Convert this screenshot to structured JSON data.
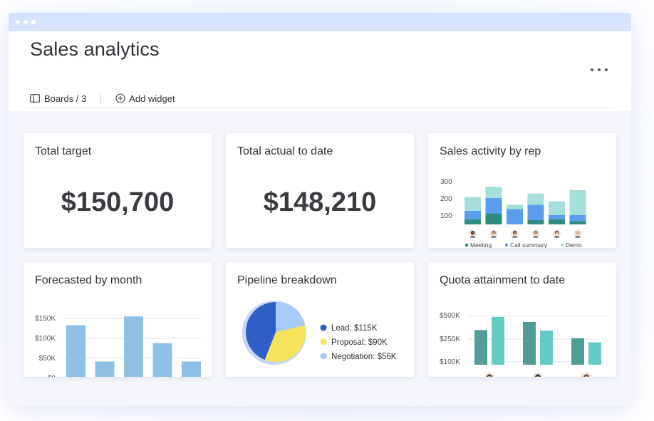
{
  "window": {
    "dots": 3
  },
  "header": {
    "title": "Sales analytics",
    "boards_label": "Boards / 3",
    "add_widget_label": "Add widget"
  },
  "colors": {
    "titlebar": "#d6e4fb",
    "meeting": "#2e8b80",
    "call_summary": "#5b9ef0",
    "demo": "#a6ded9",
    "forecast_bar": "#8fc0e6",
    "lead": "#2f5fc4",
    "proposal": "#f6e35b",
    "negotiation": "#aac9fb",
    "quota_dark": "#519c97",
    "quota_light": "#63cac4"
  },
  "cards": {
    "total_target": {
      "title": "Total target",
      "value": "$150,700"
    },
    "total_actual": {
      "title": "Total actual to date",
      "value": "$148,210"
    },
    "sales_activity": {
      "title": "Sales activity by rep"
    },
    "forecast": {
      "title": "Forecasted by month"
    },
    "pipeline": {
      "title": "Pipeline breakdown"
    },
    "quota": {
      "title": "Quota attainment to date"
    }
  },
  "chart_data": [
    {
      "id": "sales_activity",
      "type": "bar",
      "stacked": true,
      "title": "Sales activity by rep",
      "categories": [
        "rep-1",
        "rep-2",
        "rep-3",
        "rep-4",
        "rep-5",
        "rep-6"
      ],
      "series": [
        {
          "name": "Meeting",
          "values": [
            30,
            65,
            0,
            25,
            30,
            20
          ]
        },
        {
          "name": "Call summary",
          "values": [
            50,
            90,
            90,
            90,
            25,
            35
          ]
        },
        {
          "name": "Demo",
          "values": [
            80,
            65,
            25,
            65,
            80,
            145
          ]
        }
      ],
      "ytick_labels": [
        "300",
        "200",
        "100"
      ],
      "ylim": [
        50,
        300
      ],
      "grid": false,
      "legend": "bottom"
    },
    {
      "id": "forecast",
      "type": "bar",
      "title": "Forecasted by month",
      "categories": [
        "m1",
        "m2",
        "m3",
        "m4",
        "m5"
      ],
      "values": [
        133000,
        42000,
        155000,
        88000,
        42000
      ],
      "ytick_labels": [
        "$150K",
        "$100K",
        "$50K",
        "$0"
      ],
      "ylim": [
        0,
        165000
      ],
      "grid": true
    },
    {
      "id": "pipeline",
      "type": "pie",
      "title": "Pipeline breakdown",
      "slices": [
        {
          "label": "Lead: $115K",
          "value": 115
        },
        {
          "label": "Proposal: $90K",
          "value": 90
        },
        {
          "label": "Negotiation: $56K",
          "value": 56
        }
      ],
      "legend": "right"
    },
    {
      "id": "quota",
      "type": "bar",
      "title": "Quota attainment to date",
      "categories": [
        "rep-1",
        "rep-2",
        "rep-3"
      ],
      "series": [
        {
          "name": "",
          "values": [
            340000,
            420000,
            260000
          ]
        },
        {
          "name": "",
          "values": [
            470000,
            335000,
            220000
          ]
        }
      ],
      "ytick_labels": [
        "$500K",
        "$250K",
        "$100K"
      ],
      "ylim": [
        0,
        650000
      ],
      "grid": true
    }
  ]
}
